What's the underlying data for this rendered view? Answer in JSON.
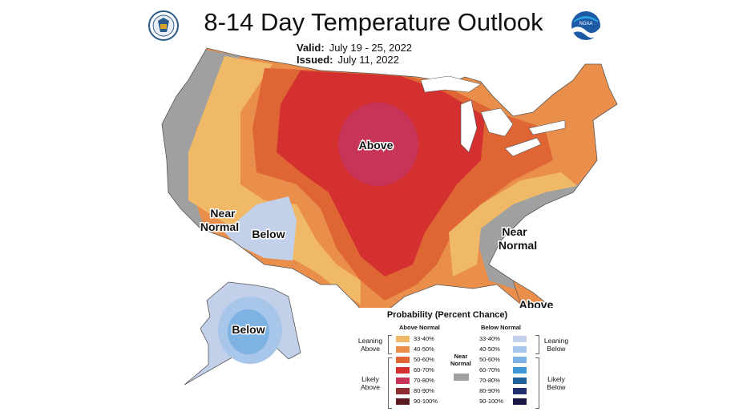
{
  "title": "8-14 Day Temperature Outlook",
  "valid_label": "Valid:",
  "valid_value": "July 19 - 25, 2022",
  "issued_label": "Issued:",
  "issued_value": "July 11, 2022",
  "agency_logos": [
    "commerce-seal-icon",
    "noaa-logo-icon"
  ],
  "noaa_logo_text": "NOAA",
  "map_labels": {
    "above_central": "Above",
    "near_normal_west_1": "Near",
    "near_normal_west_2": "Normal",
    "below_southwest": "Below",
    "near_normal_east_1": "Near",
    "near_normal_east_2": "Normal",
    "above_florida": "Above",
    "below_alaska": "Below"
  },
  "colors": {
    "above_33_40": "#f0b968",
    "above_40_50": "#e98f4b",
    "above_50_60": "#e06535",
    "above_60_70": "#d3302f",
    "above_70_80": "#c83457",
    "above_80_90": "#8f2d33",
    "above_90_100": "#5b1a1f",
    "near_normal": "#a0a0a0",
    "below_33_40": "#c3d0ea",
    "below_40_50": "#a8c6e9",
    "below_50_60": "#7eb2e2",
    "below_60_70": "#3f97d8",
    "below_70_80": "#1f5f9c",
    "below_80_90": "#23326f",
    "below_90_100": "#1a1646"
  },
  "legend": {
    "title": "Probability (Percent Chance)",
    "above_header": "Above Normal",
    "below_header": "Below Normal",
    "near_normal_1": "Near",
    "near_normal_2": "Normal",
    "leaning_above_1": "Leaning",
    "leaning_above_2": "Above",
    "likely_above_1": "Likely",
    "likely_above_2": "Above",
    "leaning_below_1": "Leaning",
    "leaning_below_2": "Below",
    "likely_below_1": "Likely",
    "likely_below_2": "Below",
    "above": [
      {
        "range": "33-40%",
        "color": "#f0b968"
      },
      {
        "range": "40-50%",
        "color": "#e98f4b"
      },
      {
        "range": "50-60%",
        "color": "#e06535"
      },
      {
        "range": "60-70%",
        "color": "#d3302f"
      },
      {
        "range": "70-80%",
        "color": "#c83457"
      },
      {
        "range": "80-90%",
        "color": "#8f2d33"
      },
      {
        "range": "90-100%",
        "color": "#5b1a1f"
      }
    ],
    "below": [
      {
        "range": "33-40%",
        "color": "#c3d0ea"
      },
      {
        "range": "40-50%",
        "color": "#a8c6e9"
      },
      {
        "range": "50-60%",
        "color": "#7eb2e2"
      },
      {
        "range": "60-70%",
        "color": "#3f97d8"
      },
      {
        "range": "70-80%",
        "color": "#1f5f9c"
      },
      {
        "range": "80-90%",
        "color": "#23326f"
      },
      {
        "range": "90-100%",
        "color": "#1a1646"
      }
    ]
  }
}
